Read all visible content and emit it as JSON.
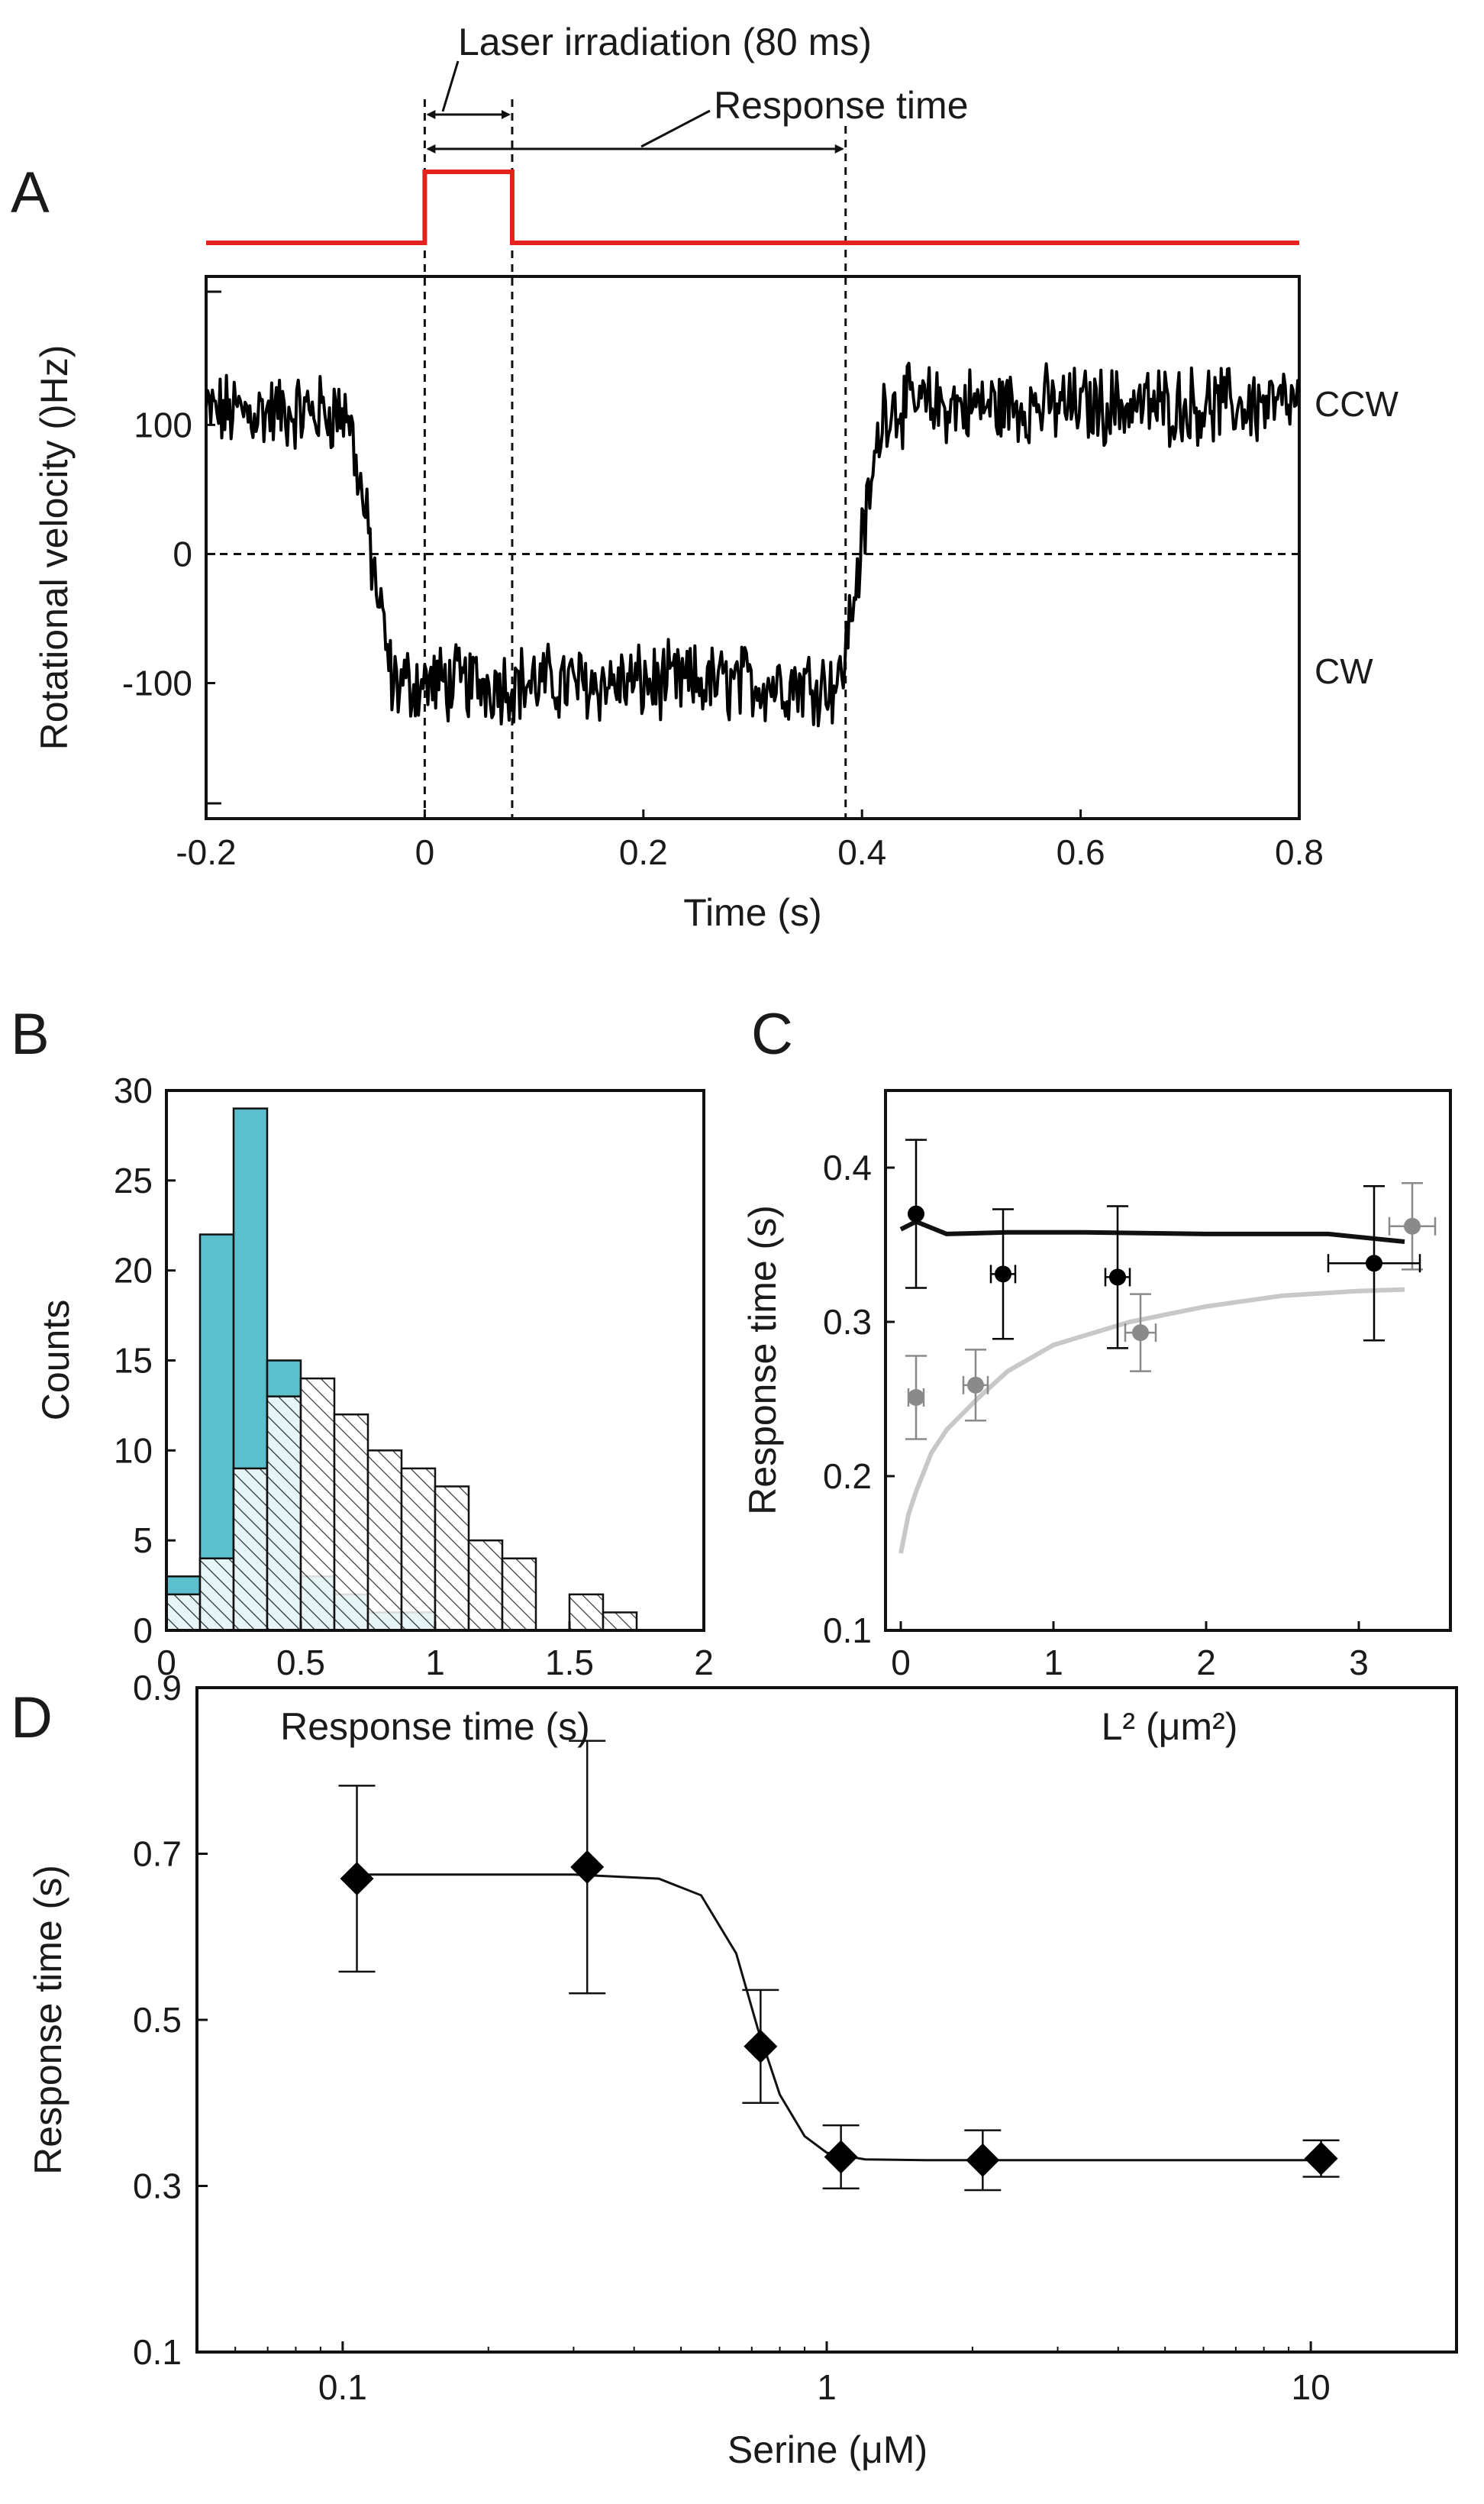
{
  "chart_data": [
    {
      "panel": "A",
      "type": "line",
      "xlabel": "Time (s)",
      "ylabel": "Rotational velocity ()Hz)",
      "xlim": [
        -0.2,
        0.8
      ],
      "ylim": [
        -205,
        215
      ],
      "xticks": [
        -0.2,
        0,
        0.2,
        0.4,
        0.6,
        0.8
      ],
      "xtick_labels": [
        "-0.2",
        "0",
        "0.2",
        "0.4",
        "0.6",
        "0.8"
      ],
      "yticks": [
        100,
        0,
        -100
      ],
      "ytick_labels": [
        "100",
        "0",
        "-100"
      ],
      "state_labels": {
        "ccw": "CCW",
        "cw": "CW"
      },
      "annotations": {
        "laser": "Laser irradiation (80 ms)",
        "response": "Response time"
      },
      "laser_pulse": {
        "start": 0,
        "end": 0.08,
        "color": "#e3231b"
      },
      "reference_lines": {
        "zero_velocity": 0,
        "laser_on": 0,
        "laser_off": 0.08,
        "switch_back": 0.385
      },
      "trace": {
        "color": "#000000",
        "segments": [
          {
            "from": -0.2,
            "to": -0.07,
            "mean": 110
          },
          {
            "from": -0.07,
            "to": -0.03,
            "mean": 0,
            "transition": "ccw-to-cw"
          },
          {
            "from": -0.03,
            "to": 0.38,
            "mean": -100
          },
          {
            "from": 0.38,
            "to": 0.42,
            "mean": 0,
            "transition": "cw-to-ccw"
          },
          {
            "from": 0.42,
            "to": 0.8,
            "mean": 115
          }
        ],
        "noise_amplitude": 25
      }
    },
    {
      "panel": "B",
      "type": "bar",
      "xlabel": "Response time (s)",
      "ylabel": "Counts",
      "xlim": [
        0,
        2
      ],
      "ylim": [
        0,
        30
      ],
      "xticks": [
        0,
        0.5,
        1,
        1.5,
        2
      ],
      "xtick_labels": [
        "0",
        "0.5",
        "1",
        "1.5",
        "2"
      ],
      "yticks": [
        0,
        5,
        10,
        15,
        20,
        25,
        30
      ],
      "ytick_labels": [
        "0",
        "5",
        "10",
        "15",
        "20",
        "25",
        "30"
      ],
      "bin_width": 0.125,
      "bin_starts": [
        0,
        0.125,
        0.25,
        0.375,
        0.5,
        0.625,
        0.75,
        0.875,
        1.0,
        1.125,
        1.25,
        1.375,
        1.5,
        1.625
      ],
      "series": [
        {
          "name": "cyan",
          "fill": "#5bbfcc",
          "values": [
            3,
            22,
            29,
            15,
            3,
            2,
            1,
            1,
            0,
            0,
            0,
            0,
            0,
            0
          ]
        },
        {
          "name": "hatched",
          "fill": "#bdbdbd",
          "hatched": true,
          "values": [
            2,
            4,
            9,
            13,
            14,
            12,
            10,
            9,
            8,
            5,
            4,
            0,
            2,
            1
          ]
        }
      ]
    },
    {
      "panel": "C",
      "type": "scatter",
      "xlabel": "L² (μm²)",
      "ylabel": "Response time (s)",
      "xlim": [
        -0.1,
        3.6
      ],
      "ylim": [
        0.1,
        0.45
      ],
      "xticks": [
        0,
        1,
        2,
        3
      ],
      "xtick_labels": [
        "0",
        "1",
        "2",
        "3"
      ],
      "yticks": [
        0.1,
        0.2,
        0.3,
        0.4
      ],
      "ytick_labels": [
        "0.1",
        "0.2",
        "0.3",
        "0.4"
      ],
      "series": [
        {
          "name": "black",
          "color": "#000000",
          "points": [
            {
              "x": 0.1,
              "y": 0.37,
              "yerr": 0.048
            },
            {
              "x": 0.67,
              "y": 0.331,
              "yerr": 0.042,
              "xerr": 0.08
            },
            {
              "x": 1.42,
              "y": 0.329,
              "yerr": 0.046,
              "xerr": 0.08
            },
            {
              "x": 3.1,
              "y": 0.338,
              "yerr": 0.05,
              "xerr": 0.3
            }
          ],
          "fit": {
            "x": [
              0,
              0.1,
              0.3,
              0.7,
              1.2,
              2.0,
              2.8,
              3.3
            ],
            "y": [
              0.36,
              0.365,
              0.357,
              0.358,
              0.358,
              0.357,
              0.357,
              0.352
            ]
          }
        },
        {
          "name": "gray",
          "color": "#8a8a8a",
          "points": [
            {
              "x": 0.1,
              "y": 0.251,
              "yerr": 0.027,
              "xerr": 0.05
            },
            {
              "x": 0.49,
              "y": 0.259,
              "yerr": 0.023,
              "xerr": 0.08
            },
            {
              "x": 1.57,
              "y": 0.293,
              "yerr": 0.025,
              "xerr": 0.1
            },
            {
              "x": 3.35,
              "y": 0.362,
              "yerr": 0.028,
              "xerr": 0.15
            }
          ],
          "fit": {
            "x": [
              0,
              0.05,
              0.1,
              0.2,
              0.3,
              0.5,
              0.7,
              1.0,
              1.5,
              2.0,
              2.5,
              3.0,
              3.3
            ],
            "y": [
              0.15,
              0.175,
              0.19,
              0.215,
              0.23,
              0.25,
              0.268,
              0.285,
              0.3,
              0.31,
              0.317,
              0.32,
              0.321
            ]
          }
        }
      ]
    },
    {
      "panel": "D",
      "type": "scatter",
      "xlabel": "Serine (μM)",
      "ylabel": "Response time (s)",
      "xscale": "log",
      "xlim": [
        0.05,
        20
      ],
      "ylim": [
        0.1,
        0.9
      ],
      "xticks": [
        0.1,
        1,
        10
      ],
      "xtick_labels": [
        "0.1",
        "1",
        "10"
      ],
      "yticks": [
        0.1,
        0.3,
        0.5,
        0.7,
        0.9
      ],
      "ytick_labels": [
        "0.1",
        "0.3",
        "0.5",
        "0.7",
        "0.9"
      ],
      "series": [
        {
          "name": "serine response",
          "color": "#000000",
          "marker": "diamond",
          "points": [
            {
              "x": 0.107,
              "y": 0.67,
              "yerr": 0.112
            },
            {
              "x": 0.32,
              "y": 0.684,
              "yerr": 0.152
            },
            {
              "x": 0.73,
              "y": 0.468,
              "yerr": 0.068
            },
            {
              "x": 1.07,
              "y": 0.335,
              "yerr": 0.038
            },
            {
              "x": 2.1,
              "y": 0.331,
              "yerr": 0.036
            },
            {
              "x": 10.5,
              "y": 0.333,
              "yerr": 0.022
            }
          ],
          "fit": {
            "x": [
              0.107,
              0.3,
              0.45,
              0.55,
              0.65,
              0.72,
              0.8,
              0.9,
              1.0,
              1.2,
              1.6,
              3.0,
              10.5
            ],
            "y": [
              0.675,
              0.675,
              0.67,
              0.65,
              0.58,
              0.49,
              0.41,
              0.36,
              0.34,
              0.332,
              0.331,
              0.331,
              0.331
            ]
          }
        }
      ]
    }
  ]
}
